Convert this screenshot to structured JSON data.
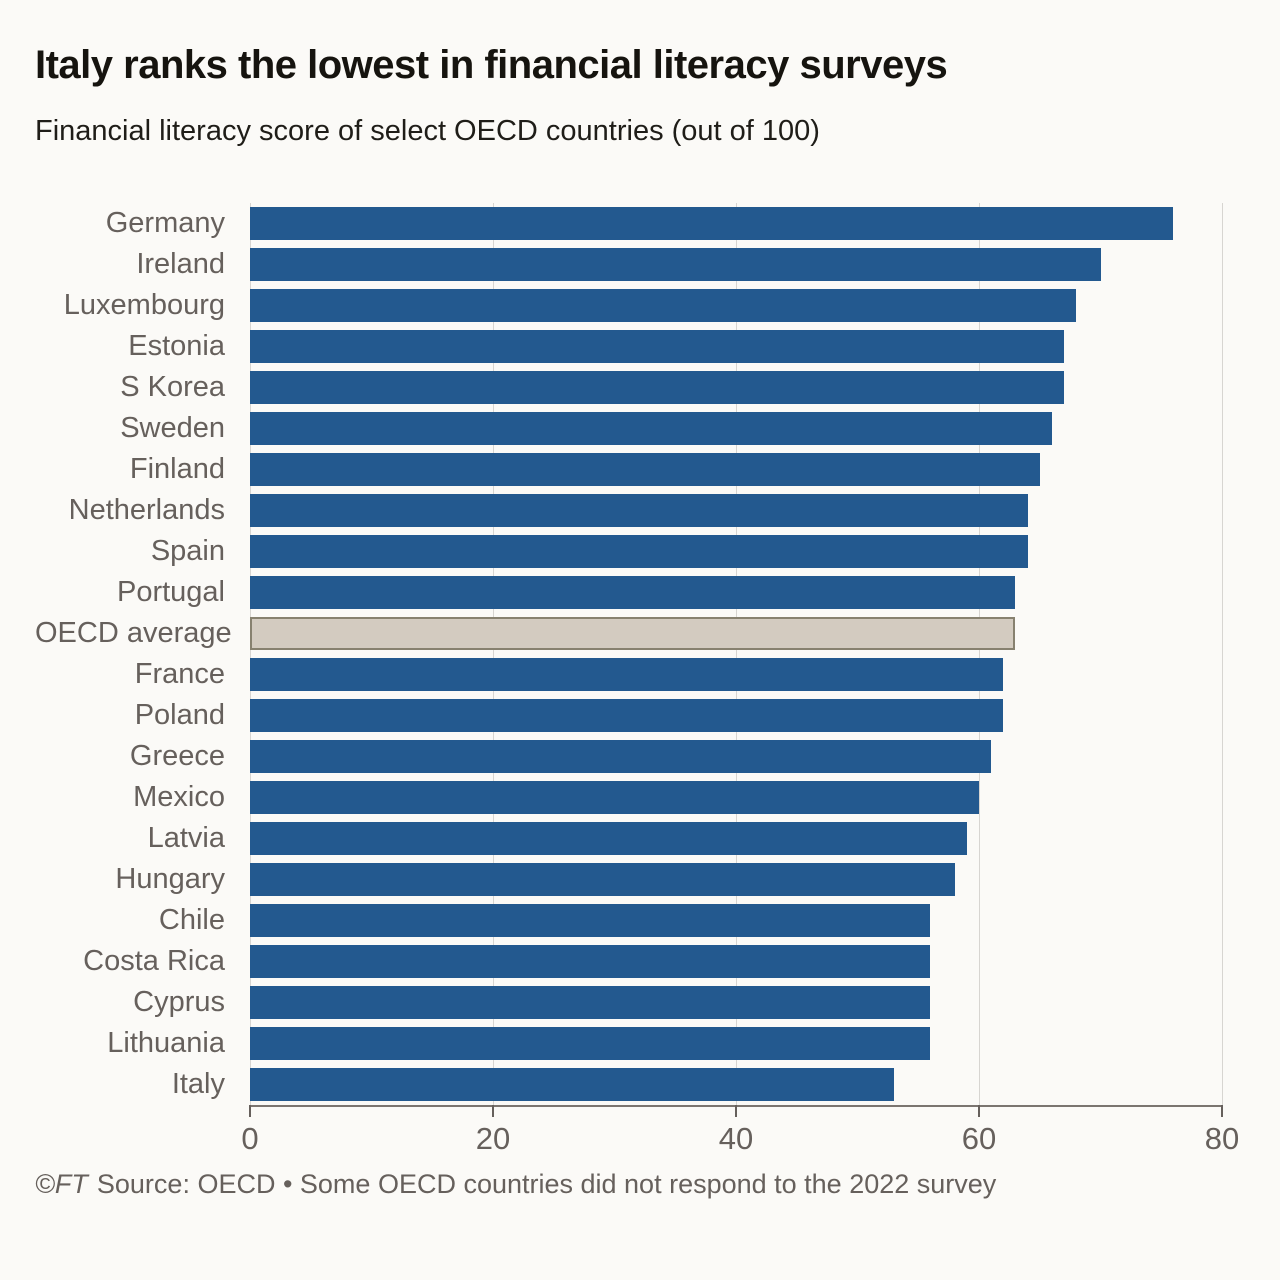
{
  "header": {
    "title": "Italy ranks the lowest in financial literacy surveys",
    "subtitle": "Financial literacy score of select OECD countries (out of 100)"
  },
  "chart_data": {
    "type": "bar",
    "orientation": "horizontal",
    "title": "Italy ranks the lowest in financial literacy surveys",
    "subtitle": "Financial literacy score of select OECD countries (out of 100)",
    "xlabel": "",
    "ylabel": "",
    "categories": [
      "Germany",
      "Ireland",
      "Luxembourg",
      "Estonia",
      "S Korea",
      "Sweden",
      "Finland",
      "Netherlands",
      "Spain",
      "Portugal",
      "OECD average",
      "France",
      "Poland",
      "Greece",
      "Mexico",
      "Latvia",
      "Hungary",
      "Chile",
      "Costa Rica",
      "Cyprus",
      "Lithuania",
      "Italy"
    ],
    "values": [
      76,
      70,
      68,
      67,
      67,
      66,
      65,
      64,
      64,
      63,
      63,
      62,
      62,
      61,
      60,
      59,
      58,
      56,
      56,
      56,
      56,
      53
    ],
    "highlight_category": "OECD average",
    "xlim": [
      0,
      80
    ],
    "x_ticks": [
      0,
      20,
      40,
      60,
      80
    ],
    "grid": "vertical gridlines at ticks",
    "legend": "none",
    "colors": {
      "bar": "#23598f",
      "highlight_fill": "#d3cbc0",
      "highlight_border": "#87816f",
      "axis_text": "#66605c",
      "gridline": "#d7d5d1",
      "axis_line": "#7b7570",
      "background": "#fbfaf7"
    }
  },
  "footer": {
    "copyright": "©FT",
    "text": "Source: OECD • Some OECD countries did not respond to the 2022 survey"
  }
}
